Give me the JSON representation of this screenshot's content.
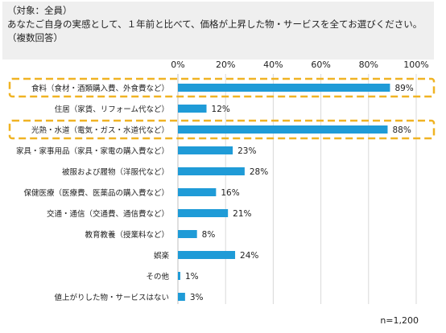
{
  "header": {
    "target_line": "（対象：全員）",
    "question_line": "あなたご自身の実感として、１年前と比べて、価格が上昇した物・サービスを全てお選びください。",
    "type_line": "（複数回答）"
  },
  "sample_size": "n=1,200",
  "colors": {
    "bar": "#1f9bd7",
    "highlight": "#f0b323",
    "grid": "#d9d9d9",
    "header_bg": "#efefef"
  },
  "chart_data": {
    "type": "bar",
    "orientation": "horizontal",
    "categories": [
      "食料（食材・酒類購入費、外食費など）",
      "住居（家賃、リフォーム代など）",
      "光熱・水道（電気・ガス・水道代など）",
      "家具・家事用品（家具・家電の購入費など）",
      "被服および履物（洋服代など）",
      "保健医療（医療費、医薬品の購入費など）",
      "交通・通信（交通費、通信費など）",
      "教育教養（授業料など）",
      "娯楽",
      "その他",
      "値上がりした物・サービスはない"
    ],
    "values": [
      89,
      12,
      88,
      23,
      28,
      16,
      21,
      8,
      24,
      1,
      3
    ],
    "value_labels": [
      "89%",
      "12%",
      "88%",
      "23%",
      "28%",
      "16%",
      "21%",
      "8%",
      "24%",
      "1%",
      "3%"
    ],
    "xlim": [
      0,
      100
    ],
    "xticks": [
      0,
      20,
      40,
      60,
      80,
      100
    ],
    "xtick_labels": [
      "0%",
      "20%",
      "40%",
      "60%",
      "80%",
      "100%"
    ],
    "highlighted_indices": [
      0,
      2
    ],
    "grid": true
  }
}
